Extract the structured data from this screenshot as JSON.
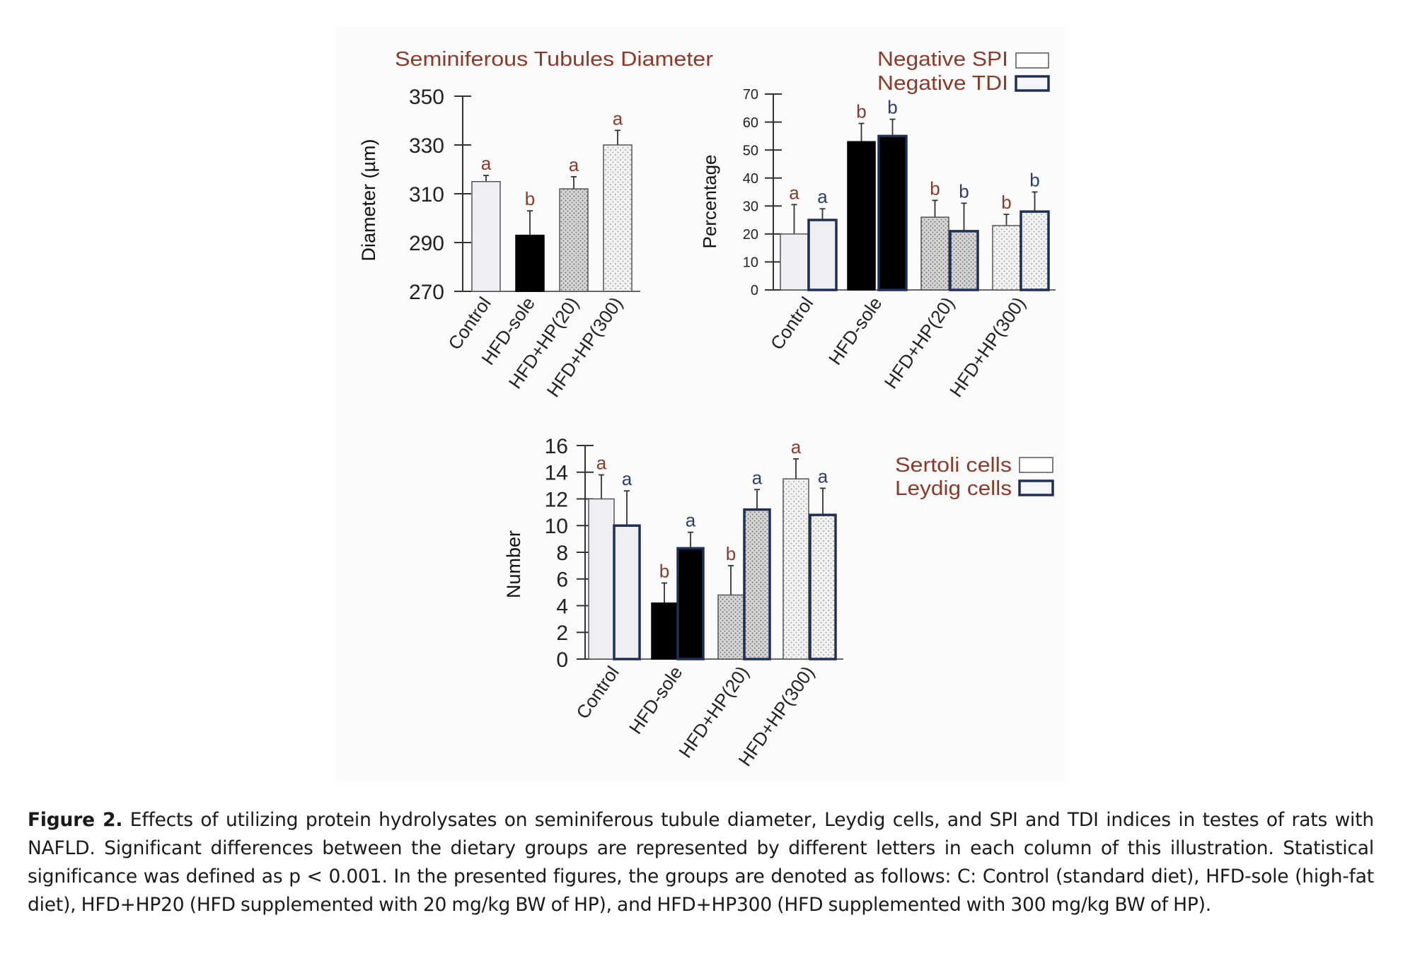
{
  "colors": {
    "letter_red": "#8b3a2a",
    "letter_blue": "#2b3f6b",
    "tdi_border": "#1f2f55",
    "axis": "#333333"
  },
  "caption": {
    "label": "Figure 2.",
    "text": " Effects of utilizing protein hydrolysates on seminiferous tubule diameter, Leydig cells, and SPI and TDI indices in testes of rats with NAFLD. Significant differences between the dietary groups are represented by different letters in each column of this illustration. Statistical significance was defined as p < 0.001. In the presented figures, the groups are denoted as follows: C: Control (standard diet), HFD-sole (high-fat diet), HFD+HP20 (HFD supplemented with 20 mg/kg BW of HP), and HFD+HP300 (HFD supplemented with 300 mg/kg BW of HP)."
  },
  "chart_data": [
    {
      "type": "bar",
      "title": "Seminiferous Tubules Diameter",
      "xlabel": "",
      "ylabel": "Diameter (µm)",
      "ylim": [
        270,
        350
      ],
      "yticks": [
        "270",
        "290",
        "310",
        "330",
        "350"
      ],
      "ytick_values": [
        270,
        290,
        310,
        330,
        350
      ],
      "categories": [
        "Control",
        "HFD-sole",
        "HFD+HP(20)",
        "HFD+HP(300)"
      ],
      "series": [
        {
          "name": "Diameter",
          "values": [
            315,
            293,
            312,
            330
          ],
          "error_upper": [
            317.5,
            303,
            317,
            336
          ],
          "letters": [
            "a",
            "b",
            "a",
            "a"
          ],
          "fills": [
            "light",
            "black",
            "dense-dots",
            "sparse-dots"
          ]
        }
      ],
      "legend": null,
      "grid": false
    },
    {
      "type": "bar",
      "title": "",
      "xlabel": "",
      "ylabel": "Percentage",
      "ylim": [
        0,
        70
      ],
      "yticks": [
        "0",
        "10",
        "20",
        "30",
        "40",
        "50",
        "60",
        "70"
      ],
      "ytick_values": [
        0,
        10,
        20,
        30,
        40,
        50,
        60,
        70
      ],
      "categories": [
        "Control",
        "HFD-sole",
        "HFD+HP(20)",
        "HFD+HP(300)"
      ],
      "series": [
        {
          "name": "Negative SPI",
          "values": [
            20,
            53,
            26,
            23
          ],
          "error_upper": [
            30.5,
            59.5,
            32,
            27
          ],
          "letters": [
            "a",
            "b",
            "b",
            "b"
          ]
        },
        {
          "name": "Negative TDI",
          "values": [
            25,
            55,
            21,
            28
          ],
          "error_upper": [
            29,
            61,
            31,
            35
          ],
          "letters": [
            "a",
            "b",
            "b",
            "b"
          ]
        }
      ],
      "legend": "top-right",
      "grid": false
    },
    {
      "type": "bar",
      "title": "",
      "xlabel": "",
      "ylabel": "Number",
      "ylim": [
        0,
        16
      ],
      "yticks": [
        "0",
        "2",
        "4",
        "6",
        "8",
        "10",
        "12",
        "14",
        "16"
      ],
      "ytick_values": [
        0,
        2,
        4,
        6,
        8,
        10,
        12,
        14,
        16
      ],
      "categories": [
        "Control",
        "HFD-sole",
        "HFD+HP(20)",
        "HFD+HP(300)"
      ],
      "series": [
        {
          "name": "Sertoli cells",
          "values": [
            12,
            4.2,
            4.8,
            13.5
          ],
          "error_upper": [
            13.8,
            5.7,
            7,
            15
          ],
          "letters": [
            "a",
            "b",
            "b",
            "a"
          ]
        },
        {
          "name": "Leydig cells",
          "values": [
            10,
            8.3,
            11.2,
            10.8
          ],
          "error_upper": [
            12.6,
            9.5,
            12.7,
            12.8
          ],
          "letters": [
            "a",
            "a",
            "a",
            "a"
          ]
        }
      ],
      "legend": "top-right",
      "grid": false
    }
  ]
}
